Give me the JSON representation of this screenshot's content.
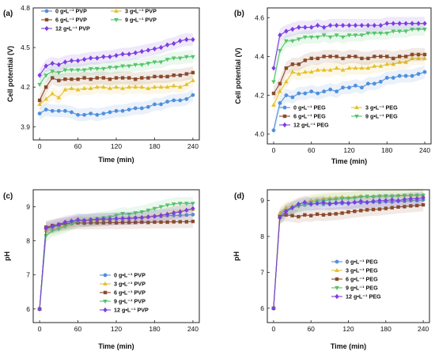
{
  "colors": {
    "c0": "#4f8fdc",
    "c3": "#e3c12f",
    "c6": "#8a4b2b",
    "c9": "#55c46a",
    "c12": "#7b3fe0"
  },
  "chart_data": [
    {
      "panel": "(a)",
      "type": "line",
      "xlabel": "Time (min)",
      "ylabel": "Cell potential (V)",
      "xlim": [
        -10,
        250
      ],
      "ylim": [
        3.8,
        4.8
      ],
      "xticks": [
        "0",
        "60",
        "120",
        "180",
        "240"
      ],
      "yticks": [
        "3.9",
        "4.2",
        "4.5",
        "4.8"
      ],
      "legend_position": "top-left",
      "legend_columns": 2,
      "x": [
        0,
        10,
        20,
        30,
        40,
        50,
        60,
        70,
        80,
        90,
        100,
        110,
        120,
        130,
        140,
        150,
        160,
        170,
        180,
        190,
        200,
        210,
        220,
        230,
        240
      ],
      "series": [
        {
          "name": "0 g•L⁻¹ PVP",
          "color_key": "c0",
          "values": [
            4.0,
            4.03,
            4.02,
            4.02,
            4.02,
            4.01,
            3.99,
            3.99,
            4.0,
            3.99,
            4.0,
            4.01,
            4.02,
            4.02,
            4.03,
            4.04,
            4.04,
            4.05,
            4.07,
            4.07,
            4.09,
            4.1,
            4.1,
            4.11,
            4.14
          ]
        },
        {
          "name": "3 g•L⁻¹ PVP",
          "color_key": "c3",
          "values": [
            4.07,
            4.11,
            4.15,
            4.12,
            4.18,
            4.19,
            4.18,
            4.19,
            4.19,
            4.2,
            4.2,
            4.19,
            4.2,
            4.19,
            4.2,
            4.2,
            4.2,
            4.19,
            4.2,
            4.2,
            4.2,
            4.21,
            4.2,
            4.22,
            4.25
          ]
        },
        {
          "name": "6 g•L⁻¹ PVP",
          "color_key": "c6",
          "values": [
            4.1,
            4.2,
            4.27,
            4.25,
            4.26,
            4.26,
            4.26,
            4.27,
            4.26,
            4.27,
            4.27,
            4.26,
            4.27,
            4.27,
            4.27,
            4.26,
            4.27,
            4.27,
            4.28,
            4.28,
            4.28,
            4.29,
            4.29,
            4.3,
            4.31
          ]
        },
        {
          "name": "9 g•L⁻¹ PVP",
          "color_key": "c9",
          "values": [
            4.22,
            4.29,
            4.32,
            4.31,
            4.33,
            4.33,
            4.33,
            4.33,
            4.34,
            4.34,
            4.34,
            4.35,
            4.35,
            4.36,
            4.36,
            4.37,
            4.37,
            4.38,
            4.39,
            4.39,
            4.41,
            4.42,
            4.42,
            4.43,
            4.43
          ]
        },
        {
          "name": "12 g•L⁻¹ PVP",
          "color_key": "c12",
          "values": [
            4.29,
            4.36,
            4.38,
            4.37,
            4.39,
            4.4,
            4.4,
            4.41,
            4.42,
            4.42,
            4.43,
            4.43,
            4.44,
            4.45,
            4.45,
            4.46,
            4.47,
            4.48,
            4.49,
            4.5,
            4.52,
            4.53,
            4.55,
            4.56,
            4.56
          ]
        }
      ]
    },
    {
      "panel": "(b)",
      "type": "line",
      "xlabel": "Time (min)",
      "ylabel": "Cell potential (V)",
      "xlim": [
        -10,
        250
      ],
      "ylim": [
        3.95,
        4.65
      ],
      "xticks": [
        "0",
        "60",
        "120",
        "180",
        "240"
      ],
      "yticks": [
        "4.0",
        "4.2",
        "4.4",
        "4.6"
      ],
      "legend_position": "bottom",
      "legend_columns": 2,
      "x": [
        0,
        10,
        20,
        30,
        40,
        50,
        60,
        70,
        80,
        90,
        100,
        110,
        120,
        130,
        140,
        150,
        160,
        170,
        180,
        190,
        200,
        210,
        220,
        230,
        240
      ],
      "series": [
        {
          "name": "0 g•L⁻¹ PEG",
          "color_key": "c0",
          "values": [
            4.02,
            4.16,
            4.2,
            4.19,
            4.21,
            4.21,
            4.22,
            4.21,
            4.22,
            4.23,
            4.22,
            4.24,
            4.24,
            4.25,
            4.24,
            4.26,
            4.26,
            4.27,
            4.29,
            4.29,
            4.3,
            4.3,
            4.3,
            4.31,
            4.32
          ]
        },
        {
          "name": "3 g•L⁻¹ PEG",
          "color_key": "c3",
          "values": [
            4.15,
            4.22,
            4.27,
            4.32,
            4.31,
            4.32,
            4.32,
            4.33,
            4.33,
            4.33,
            4.34,
            4.33,
            4.34,
            4.34,
            4.34,
            4.34,
            4.35,
            4.35,
            4.36,
            4.36,
            4.37,
            4.37,
            4.39,
            4.39,
            4.39
          ]
        },
        {
          "name": "6 g•L⁻¹ PEG",
          "color_key": "c6",
          "values": [
            4.21,
            4.26,
            4.34,
            4.36,
            4.36,
            4.38,
            4.39,
            4.39,
            4.4,
            4.4,
            4.4,
            4.39,
            4.4,
            4.4,
            4.39,
            4.39,
            4.4,
            4.4,
            4.4,
            4.39,
            4.4,
            4.4,
            4.41,
            4.41,
            4.41
          ]
        },
        {
          "name": "9 g•L⁻¹ PEG",
          "color_key": "c9",
          "values": [
            4.27,
            4.43,
            4.48,
            4.48,
            4.49,
            4.5,
            4.5,
            4.5,
            4.51,
            4.5,
            4.51,
            4.5,
            4.51,
            4.51,
            4.51,
            4.52,
            4.52,
            4.52,
            4.52,
            4.53,
            4.53,
            4.53,
            4.54,
            4.54,
            4.54
          ]
        },
        {
          "name": "12 g•L⁻¹ PEG",
          "color_key": "c12",
          "values": [
            4.34,
            4.51,
            4.53,
            4.54,
            4.55,
            4.55,
            4.55,
            4.56,
            4.55,
            4.56,
            4.56,
            4.56,
            4.56,
            4.56,
            4.56,
            4.56,
            4.56,
            4.56,
            4.57,
            4.57,
            4.57,
            4.57,
            4.57,
            4.57,
            4.57
          ]
        }
      ]
    },
    {
      "panel": "(c)",
      "type": "line",
      "xlabel": "Time (min)",
      "ylabel": "pH",
      "xlim": [
        -10,
        250
      ],
      "ylim": [
        5.6,
        9.5
      ],
      "xticks": [
        "0",
        "60",
        "120",
        "180",
        "240"
      ],
      "yticks": [
        "6",
        "7",
        "8",
        "9"
      ],
      "legend_position": "bottom-right",
      "legend_columns": 1,
      "x": [
        0,
        10,
        20,
        30,
        40,
        50,
        60,
        70,
        80,
        90,
        100,
        110,
        120,
        130,
        140,
        150,
        160,
        170,
        180,
        190,
        200,
        210,
        220,
        230,
        240
      ],
      "series": [
        {
          "name": "0 g•L⁻¹  PVP",
          "color_key": "c0",
          "values": [
            6.0,
            8.35,
            8.4,
            8.45,
            8.5,
            8.55,
            8.6,
            8.6,
            8.6,
            8.62,
            8.62,
            8.63,
            8.65,
            8.65,
            8.65,
            8.68,
            8.68,
            8.7,
            8.72,
            8.72,
            8.74,
            8.75,
            8.75,
            8.76,
            8.77
          ]
        },
        {
          "name": "3 g•L⁻¹  PVP",
          "color_key": "c3",
          "values": [
            6.0,
            8.3,
            8.35,
            8.4,
            8.45,
            8.5,
            8.55,
            8.58,
            8.6,
            8.6,
            8.62,
            8.63,
            8.65,
            8.66,
            8.67,
            8.68,
            8.7,
            8.72,
            8.74,
            8.76,
            8.8,
            8.85,
            8.88,
            8.9,
            8.92
          ]
        },
        {
          "name": "6 g•L⁻¹  PVP",
          "color_key": "c6",
          "values": [
            6.0,
            8.4,
            8.45,
            8.48,
            8.5,
            8.52,
            8.53,
            8.52,
            8.53,
            8.53,
            8.53,
            8.54,
            8.53,
            8.54,
            8.54,
            8.54,
            8.55,
            8.54,
            8.55,
            8.55,
            8.55,
            8.56,
            8.56,
            8.56,
            8.57
          ]
        },
        {
          "name": "9 g•L⁻¹  PVP",
          "color_key": "c9",
          "values": [
            6.0,
            8.15,
            8.3,
            8.35,
            8.42,
            8.5,
            8.58,
            8.6,
            8.62,
            8.65,
            8.68,
            8.7,
            8.75,
            8.8,
            8.78,
            8.82,
            8.85,
            8.9,
            8.95,
            9.0,
            9.05,
            9.08,
            9.1,
            9.1,
            9.1
          ]
        },
        {
          "name": "12 g•L⁻¹ PVP",
          "color_key": "c12",
          "values": [
            6.0,
            8.38,
            8.42,
            8.48,
            8.55,
            8.58,
            8.62,
            8.6,
            8.62,
            8.63,
            8.64,
            8.64,
            8.65,
            8.66,
            8.66,
            8.67,
            8.68,
            8.7,
            8.72,
            8.75,
            8.78,
            8.82,
            8.85,
            8.9,
            8.95
          ]
        }
      ]
    },
    {
      "panel": "(d)",
      "type": "line",
      "xlabel": "Time (min)",
      "ylabel": "pH",
      "xlim": [
        -10,
        250
      ],
      "ylim": [
        5.6,
        9.3
      ],
      "xticks": [
        "0",
        "60",
        "120",
        "180",
        "240"
      ],
      "yticks": [
        "6",
        "7",
        "8",
        "9"
      ],
      "legend_position": "bottom-right",
      "legend_columns": 1,
      "x": [
        0,
        10,
        20,
        30,
        40,
        50,
        60,
        70,
        80,
        90,
        100,
        110,
        120,
        130,
        140,
        150,
        160,
        170,
        180,
        190,
        200,
        210,
        220,
        230,
        240
      ],
      "series": [
        {
          "name": "0 g•L⁻¹ PEG",
          "color_key": "c0",
          "values": [
            6.0,
            8.6,
            8.75,
            8.8,
            8.85,
            8.88,
            8.9,
            8.92,
            8.9,
            8.92,
            8.93,
            8.92,
            8.93,
            8.95,
            8.94,
            8.95,
            8.96,
            8.95,
            8.97,
            8.96,
            8.98,
            8.98,
            9.0,
            9.0,
            9.02
          ]
        },
        {
          "name": "3 g•L⁻¹ PEG",
          "color_key": "c3",
          "values": [
            6.0,
            8.65,
            8.8,
            8.85,
            8.9,
            8.95,
            9.0,
            9.02,
            9.05,
            9.07,
            9.08,
            9.1,
            9.08,
            9.1,
            9.12,
            9.1,
            9.12,
            9.13,
            9.12,
            9.13,
            9.14,
            9.14,
            9.15,
            9.15,
            9.15
          ]
        },
        {
          "name": "6 g•L⁻¹ PEG",
          "color_key": "c6",
          "values": [
            6.0,
            8.55,
            8.6,
            8.58,
            8.55,
            8.6,
            8.58,
            8.62,
            8.6,
            8.62,
            8.63,
            8.65,
            8.68,
            8.7,
            8.72,
            8.74,
            8.75,
            8.76,
            8.78,
            8.8,
            8.82,
            8.83,
            8.85,
            8.86,
            8.88
          ]
        },
        {
          "name": "9 g•L⁻¹ PEG",
          "color_key": "c9",
          "values": [
            6.0,
            8.5,
            8.7,
            8.78,
            8.85,
            8.9,
            8.95,
            8.98,
            9.0,
            9.02,
            9.03,
            9.05,
            9.06,
            9.07,
            9.1,
            9.12,
            9.1,
            9.12,
            9.13,
            9.12,
            9.13,
            9.14,
            9.14,
            9.15,
            9.15
          ]
        },
        {
          "name": "12 g•L⁻¹ PEG",
          "color_key": "c12",
          "values": [
            6.0,
            8.52,
            8.7,
            8.8,
            8.9,
            8.95,
            8.9,
            8.92,
            8.95,
            8.9,
            8.93,
            8.95,
            8.92,
            8.95,
            8.98,
            8.95,
            8.98,
            9.0,
            9.0,
            9.02,
            9.0,
            9.03,
            9.05,
            9.05,
            9.08
          ]
        }
      ]
    }
  ]
}
